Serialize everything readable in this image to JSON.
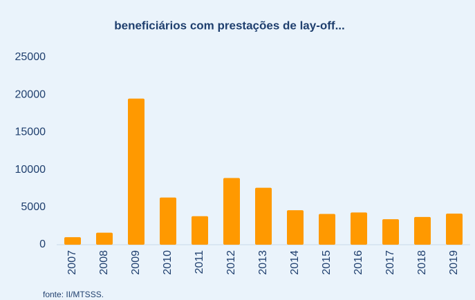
{
  "chart_data": {
    "type": "bar",
    "title": "beneficiários com prestações de lay-off...",
    "categories": [
      "2007",
      "2008",
      "2009",
      "2010",
      "2011",
      "2012",
      "2013",
      "2014",
      "2015",
      "2016",
      "2017",
      "2018",
      "2019"
    ],
    "values": [
      1000,
      1600,
      19500,
      6300,
      3800,
      8900,
      7600,
      4600,
      4100,
      4300,
      3400,
      3700,
      4150
    ],
    "color": "#ff9900",
    "ylim": [
      0,
      25000
    ],
    "yticks": [
      0,
      5000,
      10000,
      15000,
      20000,
      25000
    ],
    "grid": false,
    "source": "fonte: II/MTSSS."
  }
}
